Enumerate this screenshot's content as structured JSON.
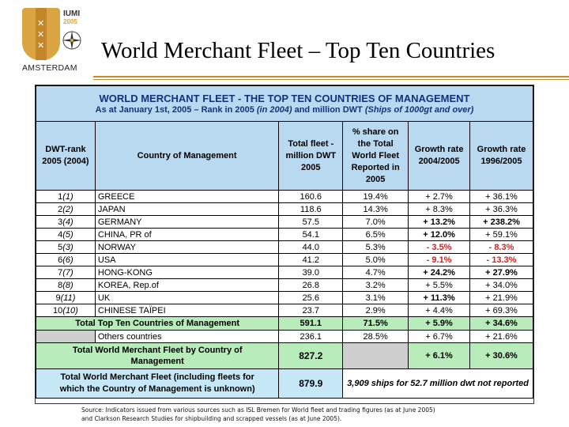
{
  "logo": {
    "org": "IUMI",
    "year": "2005",
    "city": "AMSTERDAM"
  },
  "slide_title": "World Merchant Fleet – Top Ten Countries",
  "table": {
    "heading_line1": "WORLD MERCHANT FLEET - THE TOP TEN COUNTRIES OF MANAGEMENT",
    "heading_line2_a": "As at January 1st, 2005 – Rank in 2005 ",
    "heading_line2_b": "(in 2004)",
    "heading_line2_c": " and million DWT ",
    "heading_line2_d": "(Ships of 1000gt and over)",
    "columns": {
      "rank_l1": "DWT-rank",
      "rank_l2": "2005 (2004)",
      "country": "Country of Management",
      "fleet_l1": "Total fleet -",
      "fleet_l2": "million DWT",
      "fleet_l3": "2005",
      "share_l1": "% share on",
      "share_l2": "the Total",
      "share_l3": "World Fleet",
      "share_l4": "Reported in",
      "share_l5": "2005",
      "gr04_l1": "Growth rate",
      "gr04_l2": "2004/2005",
      "gr96_l1": "Growth rate",
      "gr96_l2": "1996/2005"
    },
    "rows": [
      {
        "rank": "1",
        "prev": "(1)",
        "country": "GREECE",
        "fleet": "160.6",
        "share": "19.4%",
        "g1": "+ 2.7%",
        "g2": "+ 36.1%"
      },
      {
        "rank": "2",
        "prev": "(2)",
        "country": "JAPAN",
        "fleet": "118.6",
        "share": "14.3%",
        "g1": "+ 8.3%",
        "g2": "+ 36.3%"
      },
      {
        "rank": "3",
        "prev": "(4)",
        "country": "GERMANY",
        "fleet": "57.5",
        "share": "7.0%",
        "g1": "+ 13.2%",
        "g2": "+ 238.2%"
      },
      {
        "rank": "4",
        "prev": "(5)",
        "country": "CHINA, PR of",
        "fleet": "54.1",
        "share": "6.5%",
        "g1": "+ 12.0%",
        "g2": "+ 59.1%"
      },
      {
        "rank": "5",
        "prev": "(3)",
        "country": "NORWAY",
        "fleet": "44.0",
        "share": "5.3%",
        "g1": "- 3.5%",
        "g2": "- 8.3%"
      },
      {
        "rank": "6",
        "prev": "(6)",
        "country": "USA",
        "fleet": "41.2",
        "share": "5.0%",
        "g1": "- 9.1%",
        "g2": "- 13.3%"
      },
      {
        "rank": "7",
        "prev": "(7)",
        "country": "HONG-KONG",
        "fleet": "39.0",
        "share": "4.7%",
        "g1": "+ 24.2%",
        "g2": "+ 27.9%"
      },
      {
        "rank": "8",
        "prev": "(8)",
        "country": "KOREA, Rep.of",
        "fleet": "26.8",
        "share": "3.2%",
        "g1": "+ 5.5%",
        "g2": "+ 34.0%"
      },
      {
        "rank": "9",
        "prev": "(11)",
        "country": "UK",
        "fleet": "25.6",
        "share": "3.1%",
        "g1": "+ 11.3%",
        "g2": "+ 21.9%"
      },
      {
        "rank": "10",
        "prev": "(10)",
        "country": "CHINESE TAÏPEI",
        "fleet": "23.7",
        "share": "2.9%",
        "g1": "+ 4.4%",
        "g2": "+ 69.3%"
      }
    ],
    "total_top_ten": {
      "label": "Total Top Ten Countries of Management",
      "fleet": "591.1",
      "share": "71.5%",
      "g1": "+ 5.9%",
      "g2": "+ 34.6%"
    },
    "others": {
      "label": "Others countries",
      "fleet": "236.1",
      "share": "28.5%",
      "g1": "+ 6.7%",
      "g2": "+ 21.6%"
    },
    "total_world": {
      "label_l1": "Total World Merchant Fleet by Country of",
      "label_l2": "Management",
      "fleet": "827.2",
      "g1": "+ 6.1%",
      "g2": "+ 30.6%"
    },
    "total_incl": {
      "label_l1": "Total World Merchant Fleet (including fleets for",
      "label_l2": "which the Country of Management is unknown)",
      "fleet": "879.9",
      "note": "3,909 ships for 52.7 million dwt not reported"
    }
  },
  "source_l1": "Source: Indicators issued from various sources such as ISL Bremen for World fleet and trading figures (as at June 2005)",
  "source_l2": "and Clarkson Research Studies for shipbuilding and scrapped vessels (as at June 2005).",
  "colors": {
    "header_bg": "#b9d9f0",
    "total_bg": "#b8ecbb",
    "negative": "#d21f1f",
    "accent": "#c78a2c"
  }
}
